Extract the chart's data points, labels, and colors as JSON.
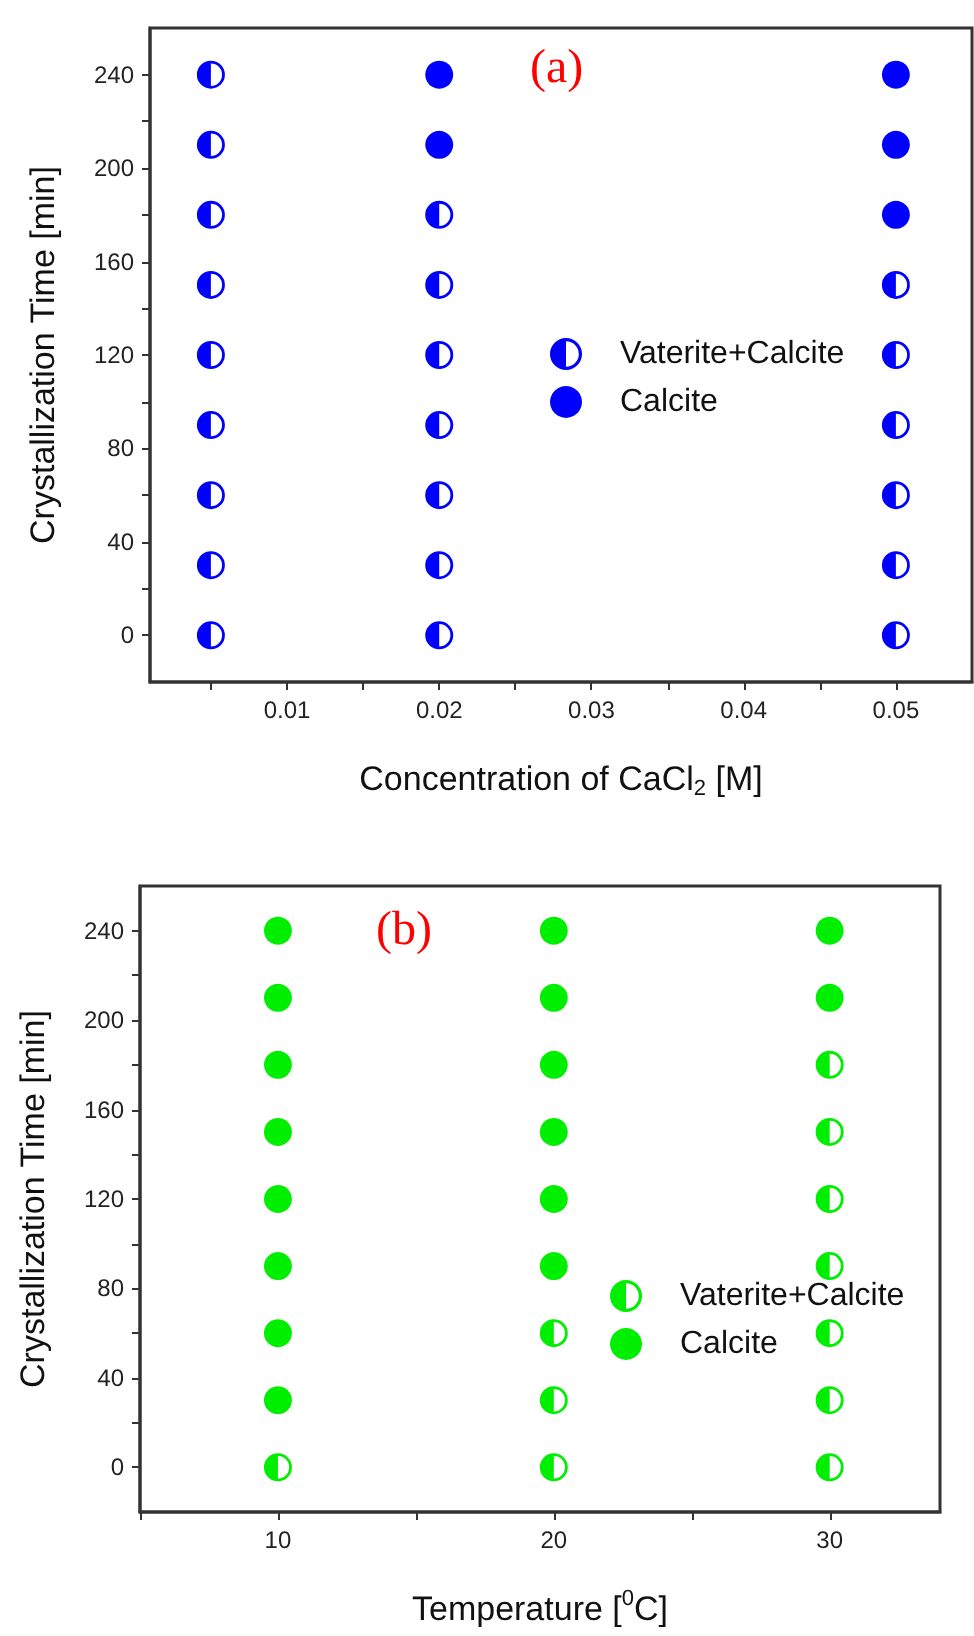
{
  "chart_data": [
    {
      "type": "scatter",
      "xlabel": "Concentration of CaCl$_{2}$ [M]",
      "ylabel": "Crystallization Time [min]",
      "annotations": [
        "(a)"
      ],
      "legend": "right",
      "grid": false,
      "marker": "circle",
      "xlim": [
        0.001,
        0.055
      ],
      "xticks": [
        {
          "value": 0.005,
          "label": null
        },
        0.01,
        {
          "value": 0.015,
          "label": null
        },
        0.02,
        {
          "value": 0.025,
          "label": null
        },
        0.03,
        {
          "value": 0.035,
          "label": null
        },
        0.04,
        {
          "value": 0.045,
          "label": null
        },
        0.05
      ],
      "ylim": [
        -20,
        260
      ],
      "yticks": [
        0,
        {
          "value": 20,
          "label": null
        },
        40,
        {
          "value": 60,
          "label": null
        },
        80,
        {
          "value": 100,
          "label": null
        },
        120,
        {
          "value": 140,
          "label": null
        },
        160,
        {
          "value": 180,
          "label": null
        },
        200,
        {
          "value": 220,
          "label": null
        },
        240
      ],
      "series": [
        {
          "name": "Vaterite+Calcite",
          "color": "#0000ff",
          "x": [
            0.005,
            0.005,
            0.005,
            0.005,
            0.005,
            0.005,
            0.005,
            0.005,
            0.005,
            0.02,
            0.02,
            0.02,
            0.02,
            0.02,
            0.02,
            0.02,
            0.05,
            0.05,
            0.05,
            0.05,
            0.05,
            0.05
          ],
          "values": [
            0,
            30,
            60,
            90,
            120,
            150,
            180,
            210,
            240,
            0,
            30,
            60,
            90,
            120,
            150,
            180,
            0,
            30,
            60,
            90,
            120,
            150
          ]
        },
        {
          "name": "Calcite",
          "color": "#0000ff",
          "x": [
            0.02,
            0.02,
            0.05,
            0.05,
            0.05
          ],
          "values": [
            210,
            240,
            180,
            210,
            240
          ]
        }
      ]
    },
    {
      "type": "scatter",
      "xlabel": "Temperature [$^{0}$C]",
      "ylabel": "Crystallization Time [min]",
      "annotations": [
        "(b)"
      ],
      "legend": "bottom right",
      "grid": false,
      "marker": "circle",
      "xlim": [
        5,
        34
      ],
      "xticks": [
        {
          "value": 5,
          "label": null
        },
        10,
        {
          "value": 15,
          "label": null
        },
        20,
        {
          "value": 25,
          "label": null
        },
        30
      ],
      "ylim": [
        -20,
        260
      ],
      "yticks": [
        0,
        {
          "value": 20,
          "label": null
        },
        40,
        {
          "value": 60,
          "label": null
        },
        80,
        {
          "value": 100,
          "label": null
        },
        120,
        {
          "value": 140,
          "label": null
        },
        160,
        {
          "value": 180,
          "label": null
        },
        200,
        {
          "value": 220,
          "label": null
        },
        240
      ],
      "series": [
        {
          "name": "Vaterite+Calcite",
          "color": "#00ee00",
          "x": [
            10,
            20,
            20,
            20,
            30,
            30,
            30,
            30,
            30,
            30,
            30
          ],
          "values": [
            0,
            0,
            30,
            60,
            0,
            30,
            60,
            90,
            120,
            150,
            180
          ]
        },
        {
          "name": "Calcite",
          "color": "#00ee00",
          "x": [
            10,
            10,
            10,
            10,
            10,
            10,
            10,
            10,
            20,
            20,
            20,
            20,
            20,
            20,
            30,
            30
          ],
          "values": [
            30,
            60,
            90,
            120,
            150,
            180,
            210,
            240,
            90,
            120,
            150,
            180,
            210,
            240,
            210,
            240
          ]
        }
      ]
    }
  ]
}
